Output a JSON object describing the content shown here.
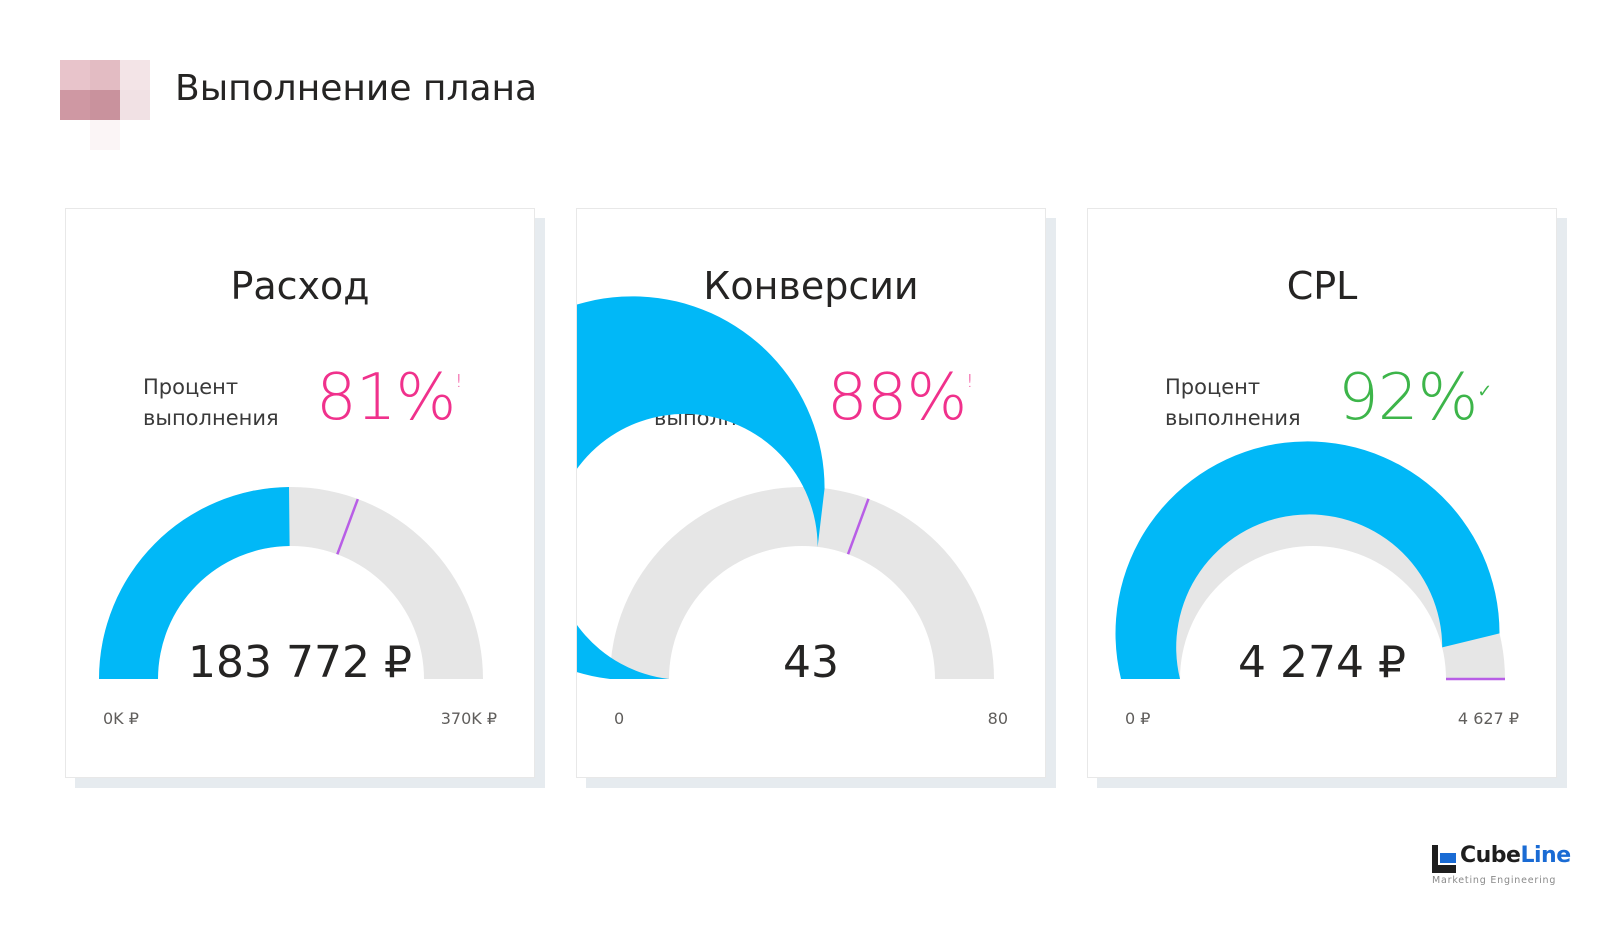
{
  "header": {
    "title": "Выполнение плана"
  },
  "colors": {
    "gauge_fill": "#01b8f7",
    "gauge_track": "#e6e6e6",
    "target_line": "#b85ee6",
    "pct_bad": "#f0318c",
    "pct_good": "#3db54a",
    "brand_blue": "#1a6bd4",
    "brand_dark": "#1e1e1e"
  },
  "cards": [
    {
      "title": "Расход",
      "pct_label": "Процент выполнения",
      "pct_value": "81%",
      "pct_mark": "!",
      "status": "bad",
      "gauge_value": "183 772 ₽",
      "min_label": "0K ₽",
      "max_label": "370K ₽"
    },
    {
      "title": "Конверсии",
      "pct_label": "Процент выполнения",
      "pct_value": "88%",
      "pct_mark": "!",
      "status": "bad",
      "gauge_value": "43",
      "min_label": "0",
      "max_label": "80"
    },
    {
      "title": "CPL",
      "pct_label": "Процент выполнения",
      "pct_value": "92%",
      "pct_mark": "✓",
      "status": "good",
      "gauge_value": "4 274 ₽",
      "min_label": "0 ₽",
      "max_label": "4 627 ₽"
    }
  ],
  "chart_data": [
    {
      "type": "gauge",
      "title": "Расход",
      "value": 183772,
      "min": 0,
      "max": 370000,
      "target": 226872
    },
    {
      "type": "gauge",
      "title": "Конверсии",
      "value": 43,
      "min": 0,
      "max": 80,
      "target": 49
    },
    {
      "type": "gauge",
      "title": "CPL",
      "value": 4274,
      "min": 0,
      "max": 4627,
      "target": 4627
    }
  ],
  "brand": {
    "name_part1": "Cube",
    "name_part2": "Line",
    "tagline": "Marketing Engineering"
  }
}
